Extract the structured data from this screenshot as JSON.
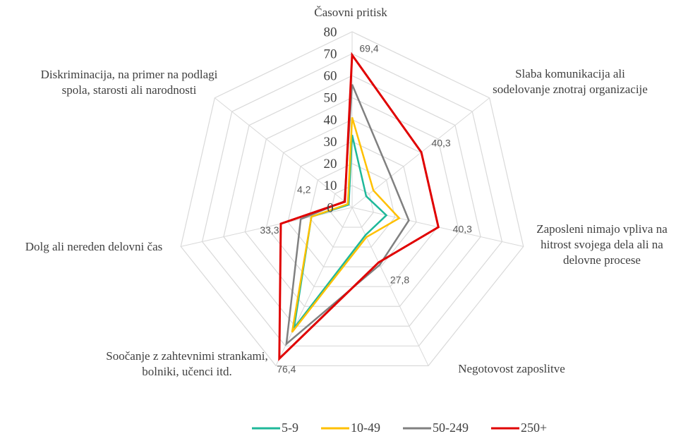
{
  "chart_data": {
    "type": "radar",
    "categories": [
      "Časovni pritisk",
      "Slaba komunikacija ali sodelovanje znotraj organizacije",
      "Zaposleni nimajo vpliva na hitrost svojega dela ali na delovne procese",
      "Negotovost zaposlitve",
      "Soočanje z zahtevnimi strankami, bolniki, učenci itd.",
      "Dolg ali nereden delovni čas",
      "Diskriminacija, na primer na podlagi spola, starosti ali narodnosti"
    ],
    "series": [
      {
        "name": "5-9",
        "color": "#1fb89a",
        "values": [
          33,
          8.2,
          16,
          14,
          61,
          19,
          2
        ]
      },
      {
        "name": "10-49",
        "color": "#ffc000",
        "values": [
          41,
          12.4,
          22,
          15,
          63,
          19,
          2.5
        ]
      },
      {
        "name": "50-249",
        "color": "#808080",
        "values": [
          56,
          22.6,
          26.5,
          29,
          69,
          24,
          4.5
        ]
      },
      {
        "name": "250+",
        "color": "#e00000",
        "values": [
          69.4,
          40.3,
          40.3,
          27.8,
          76.4,
          33.3,
          4.2
        ],
        "value_labels": [
          "69,4",
          "40,3",
          "40,3",
          "27,8",
          "76,4",
          "33,3",
          "4,2"
        ]
      }
    ],
    "ylim": [
      0,
      80
    ],
    "yticks": [
      0,
      10,
      20,
      30,
      40,
      50,
      60,
      70,
      80
    ],
    "grid": true,
    "legend": "bottom"
  }
}
